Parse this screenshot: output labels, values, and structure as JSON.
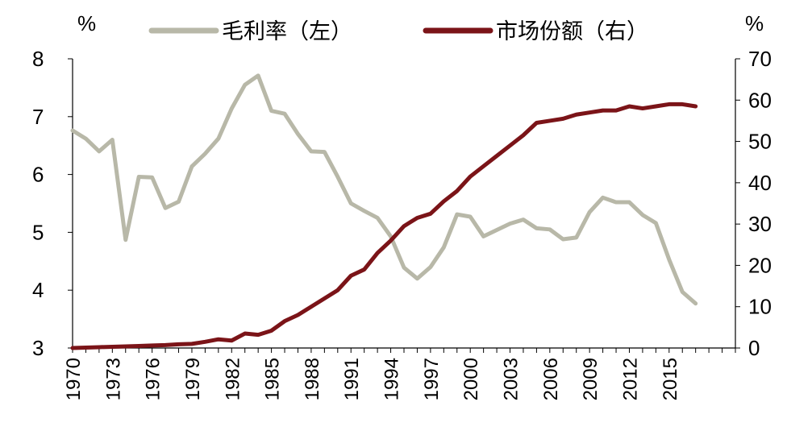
{
  "chart_data": {
    "type": "line",
    "title": "",
    "xlabel": "",
    "legend_position": "top",
    "grid": false,
    "left_axis": {
      "unit": "%",
      "ylim": [
        3,
        8
      ],
      "ticks": [
        "3",
        "4",
        "5",
        "6",
        "7",
        "8"
      ]
    },
    "right_axis": {
      "unit": "%",
      "ylim": [
        0,
        70
      ],
      "ticks": [
        "0",
        "10",
        "20",
        "30",
        "40",
        "50",
        "60",
        "70"
      ]
    },
    "x": [
      1970,
      1971,
      1972,
      1973,
      1974,
      1975,
      1976,
      1977,
      1978,
      1979,
      1980,
      1981,
      1982,
      1983,
      1984,
      1985,
      1986,
      1987,
      1988,
      1989,
      1990,
      1991,
      1992,
      1993,
      1994,
      1995,
      1996,
      1997,
      1998,
      1999,
      2000,
      2001,
      2002,
      2003,
      2004,
      2005,
      2006,
      2007,
      2008,
      2009,
      2010,
      2011,
      2012,
      2013,
      2014,
      2015,
      2016,
      2017
    ],
    "x_tick_labels": [
      "1970",
      "1973",
      "1976",
      "1979",
      "1982",
      "1985",
      "1988",
      "1991",
      "1994",
      "1997",
      "2000",
      "2003",
      "2006",
      "2009",
      "2012",
      "2015"
    ],
    "x_axis_range": [
      1970,
      2020
    ],
    "series": [
      {
        "name": "毛利率（左）",
        "axis": "left",
        "color": "#b8b8a8",
        "values": [
          6.76,
          6.62,
          6.4,
          6.6,
          4.87,
          5.96,
          5.95,
          5.42,
          5.53,
          6.14,
          6.36,
          6.62,
          7.14,
          7.55,
          7.71,
          7.1,
          7.05,
          6.7,
          6.4,
          6.39,
          5.96,
          5.5,
          5.37,
          5.25,
          4.93,
          4.39,
          4.2,
          4.4,
          4.74,
          5.31,
          5.27,
          4.93,
          5.04,
          5.15,
          5.22,
          5.07,
          5.05,
          4.88,
          4.91,
          5.35,
          5.6,
          5.52,
          5.52,
          5.3,
          5.16,
          4.53,
          3.97,
          3.77
        ]
      },
      {
        "name": "市场份额（右）",
        "axis": "right",
        "color": "#7b1418",
        "values": [
          0.0,
          0.1,
          0.2,
          0.3,
          0.4,
          0.5,
          0.6,
          0.7,
          0.9,
          1.0,
          1.5,
          2.1,
          1.8,
          3.5,
          3.2,
          4.2,
          6.5,
          8.0,
          10.0,
          12.0,
          14.0,
          17.5,
          19.0,
          23.0,
          26.0,
          29.5,
          31.5,
          32.5,
          35.5,
          38.0,
          41.5,
          44.0,
          46.5,
          49.0,
          51.5,
          54.5,
          55.0,
          55.5,
          56.5,
          57.0,
          57.5,
          57.5,
          58.5,
          58.0,
          58.5,
          59.0,
          59.0,
          58.5
        ]
      }
    ]
  }
}
